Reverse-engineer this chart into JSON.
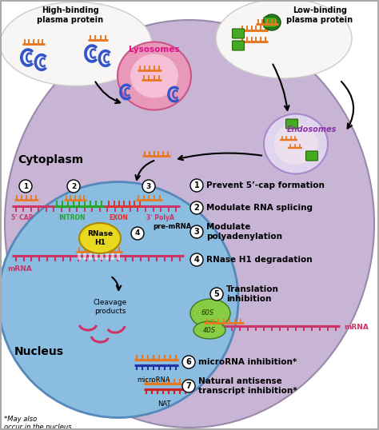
{
  "fig_width": 4.74,
  "fig_height": 5.38,
  "dpi": 100,
  "bg_color": "#ffffff",
  "outer_cell_color": "#c8b4d5",
  "nucleus_color": "#8bbde0",
  "aso_color": "#e87820",
  "mrna_color": "#cc3366",
  "intron_color": "#22aa22",
  "exon_color": "#dd3333",
  "blue_protein_color": "#3355cc",
  "green_protein_color": "#44aa22",
  "lysosome_color": "#e898b8",
  "lysosome_inner": "#f5c0d5",
  "endosome_color": "#d8c8e8",
  "rnase_color": "#e8d820",
  "ribosome_color": "#88cc44",
  "footnote": "*May also\noccur in the nucleus",
  "labels": {
    "cytoplasm": "Cytoplasm",
    "nucleus": "Nucleus",
    "lysosomes": "Lysosomes",
    "endosomes": "Endosomes",
    "high_binding": "High-binding\nplasma protein",
    "low_binding": "Low-binding\nplasma protein",
    "premrna": "pre-mRNA",
    "mrna": "mRNA",
    "5cap": "5' CAP",
    "intron": "INTRON",
    "exon": "EXON",
    "polyA": "3' PolyA",
    "rnase": "RNase\nH1",
    "cleavage": "Cleavage\nproducts",
    "microrna": "microRNA",
    "nat": "NAT",
    "60s": "60S",
    "40s": "40S",
    "mechanisms": [
      "Prevent 5’-cap formation",
      "Modulate RNA splicing",
      "Modulate\npolyadenylation",
      "RNase H1 degradation",
      "Translation\ninhibition",
      "microRNA inhibition*",
      "Natural antisense\ntranscript inhibition*"
    ]
  }
}
